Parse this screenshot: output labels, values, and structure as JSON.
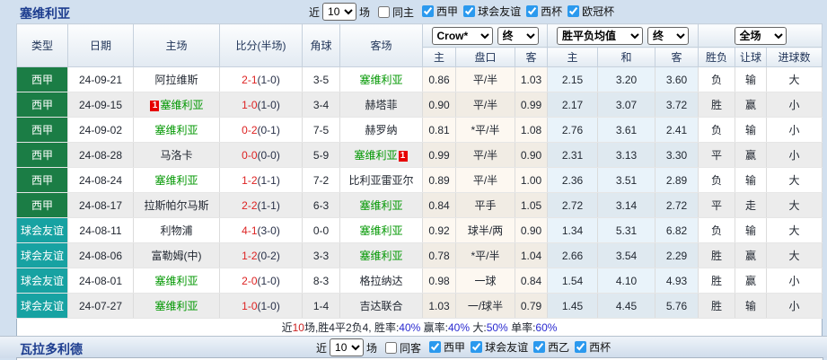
{
  "colors": {
    "liga_green": "#1b7d45",
    "friendly_teal": "#17a2a2",
    "win_red": "#cc2222",
    "lose_green": "#009700",
    "draw_blue": "#2a2ad0",
    "badge_red": "#e60000",
    "title_navy": "#1d3d8f"
  },
  "sevilla": {
    "title": "塞维利亚",
    "recent_label": "近",
    "recent_count": "10",
    "matches_label": "场",
    "same_label": "同主",
    "filters": [
      {
        "label": "西甲",
        "checked": true
      },
      {
        "label": "球会友谊",
        "checked": true
      },
      {
        "label": "西杯",
        "checked": true
      },
      {
        "label": "欧冠杯",
        "checked": true
      }
    ]
  },
  "table": {
    "columns": [
      "类型",
      "日期",
      "主场",
      "比分(半场)",
      "角球",
      "客场"
    ],
    "selects": {
      "odds_company": "Crow*",
      "odds_time1": "终",
      "avg_label": "胜平负均值",
      "odds_time2": "终",
      "scope": "全场"
    },
    "sub_columns": [
      "主",
      "盘口",
      "客",
      "主",
      "和",
      "客",
      "胜负",
      "让球",
      "进球数"
    ],
    "rows": [
      {
        "league": "西甲",
        "lt": "liga",
        "date": "24-09-21",
        "home": {
          "name": "阿拉维斯",
          "sev": false
        },
        "score": {
          "ft": "2-1",
          "ht": "(1-0)"
        },
        "corners": "3-5",
        "away": {
          "name": "塞维利亚",
          "sev": true
        },
        "crow": [
          "0.86",
          "平/半",
          "1.03"
        ],
        "avg": [
          "2.15",
          "3.20",
          "3.60"
        ],
        "res": [
          {
            "t": "负",
            "c": "green"
          },
          {
            "t": "输",
            "c": "green"
          },
          {
            "t": "大",
            "c": "red"
          }
        ]
      },
      {
        "league": "西甲",
        "lt": "liga",
        "date": "24-09-15",
        "home": {
          "name": "塞维利亚",
          "sev": true,
          "badge": "1",
          "badge_pos": "before"
        },
        "score": {
          "ft": "1-0",
          "ht": "(1-0)"
        },
        "corners": "3-4",
        "away": {
          "name": "赫塔菲",
          "sev": false
        },
        "crow": [
          "0.90",
          "平/半",
          "0.99"
        ],
        "avg": [
          "2.17",
          "3.07",
          "3.72"
        ],
        "res": [
          {
            "t": "胜",
            "c": "red"
          },
          {
            "t": "赢",
            "c": "red"
          },
          {
            "t": "小",
            "c": "green"
          }
        ]
      },
      {
        "league": "西甲",
        "lt": "liga",
        "date": "24-09-02",
        "home": {
          "name": "塞维利亚",
          "sev": true
        },
        "score": {
          "ft": "0-2",
          "ht": "(0-1)"
        },
        "corners": "7-5",
        "away": {
          "name": "赫罗纳",
          "sev": false
        },
        "crow": [
          "0.81",
          "*平/半",
          "1.08"
        ],
        "avg": [
          "2.76",
          "3.61",
          "2.41"
        ],
        "res": [
          {
            "t": "负",
            "c": "green"
          },
          {
            "t": "输",
            "c": "green"
          },
          {
            "t": "小",
            "c": "green"
          }
        ]
      },
      {
        "league": "西甲",
        "lt": "liga",
        "date": "24-08-28",
        "home": {
          "name": "马洛卡",
          "sev": false
        },
        "score": {
          "ft": "0-0",
          "ht": "(0-0)"
        },
        "corners": "5-9",
        "away": {
          "name": "塞维利亚",
          "sev": true,
          "badge": "1",
          "badge_pos": "after"
        },
        "crow": [
          "0.99",
          "平/半",
          "0.90"
        ],
        "avg": [
          "2.31",
          "3.13",
          "3.30"
        ],
        "res": [
          {
            "t": "平",
            "c": "blue"
          },
          {
            "t": "赢",
            "c": "red"
          },
          {
            "t": "小",
            "c": "green"
          }
        ]
      },
      {
        "league": "西甲",
        "lt": "liga",
        "date": "24-08-24",
        "home": {
          "name": "塞维利亚",
          "sev": true
        },
        "score": {
          "ft": "1-2",
          "ht": "(1-1)"
        },
        "corners": "7-2",
        "away": {
          "name": "比利亚雷亚尔",
          "sev": false
        },
        "crow": [
          "0.89",
          "平/半",
          "1.00"
        ],
        "avg": [
          "2.36",
          "3.51",
          "2.89"
        ],
        "res": [
          {
            "t": "负",
            "c": "green"
          },
          {
            "t": "输",
            "c": "green"
          },
          {
            "t": "大",
            "c": "red"
          }
        ]
      },
      {
        "league": "西甲",
        "lt": "liga",
        "date": "24-08-17",
        "home": {
          "name": "拉斯帕尔马斯",
          "sev": false
        },
        "score": {
          "ft": "2-2",
          "ht": "(1-1)"
        },
        "corners": "6-3",
        "away": {
          "name": "塞维利亚",
          "sev": true
        },
        "crow": [
          "0.84",
          "平手",
          "1.05"
        ],
        "avg": [
          "2.72",
          "3.14",
          "2.72"
        ],
        "res": [
          {
            "t": "平",
            "c": "blue"
          },
          {
            "t": "走",
            "c": "blue"
          },
          {
            "t": "大",
            "c": "red"
          }
        ]
      },
      {
        "league": "球会友谊",
        "lt": "fri",
        "date": "24-08-11",
        "home": {
          "name": "利物浦",
          "sev": false
        },
        "score": {
          "ft": "4-1",
          "ht": "(3-0)"
        },
        "corners": "0-0",
        "away": {
          "name": "塞维利亚",
          "sev": true
        },
        "crow": [
          "0.92",
          "球半/两",
          "0.90"
        ],
        "avg": [
          "1.34",
          "5.31",
          "6.82"
        ],
        "res": [
          {
            "t": "负",
            "c": "green"
          },
          {
            "t": "输",
            "c": "green"
          },
          {
            "t": "大",
            "c": "red"
          }
        ]
      },
      {
        "league": "球会友谊",
        "lt": "fri",
        "date": "24-08-06",
        "home": {
          "name": "富勒姆(中)",
          "sev": false
        },
        "score": {
          "ft": "1-2",
          "ht": "(0-2)"
        },
        "corners": "3-3",
        "away": {
          "name": "塞维利亚",
          "sev": true
        },
        "crow": [
          "0.78",
          "*平/半",
          "1.04"
        ],
        "avg": [
          "2.66",
          "3.54",
          "2.29"
        ],
        "res": [
          {
            "t": "胜",
            "c": "red"
          },
          {
            "t": "赢",
            "c": "red"
          },
          {
            "t": "大",
            "c": "red"
          }
        ]
      },
      {
        "league": "球会友谊",
        "lt": "fri",
        "date": "24-08-01",
        "home": {
          "name": "塞维利亚",
          "sev": true
        },
        "score": {
          "ft": "2-0",
          "ht": "(1-0)"
        },
        "corners": "8-3",
        "away": {
          "name": "格拉纳达",
          "sev": false
        },
        "crow": [
          "0.98",
          "一球",
          "0.84"
        ],
        "avg": [
          "1.54",
          "4.10",
          "4.93"
        ],
        "res": [
          {
            "t": "胜",
            "c": "red"
          },
          {
            "t": "赢",
            "c": "red"
          },
          {
            "t": "小",
            "c": "green"
          }
        ]
      },
      {
        "league": "球会友谊",
        "lt": "fri",
        "date": "24-07-27",
        "home": {
          "name": "塞维利亚",
          "sev": true
        },
        "score": {
          "ft": "1-0",
          "ht": "(1-0)"
        },
        "corners": "1-4",
        "away": {
          "name": "吉达联合",
          "sev": false
        },
        "crow": [
          "1.03",
          "一/球半",
          "0.79"
        ],
        "avg": [
          "1.45",
          "4.45",
          "5.76"
        ],
        "res": [
          {
            "t": "胜",
            "c": "red"
          },
          {
            "t": "输",
            "c": "green"
          },
          {
            "t": "小",
            "c": "green"
          }
        ]
      }
    ],
    "summary_segments": [
      {
        "text": "近",
        "color": "dark"
      },
      {
        "text": "10",
        "color": "red"
      },
      {
        "text": "场,胜4平2负4, 胜率:",
        "color": "dark"
      },
      {
        "text": "40%",
        "color": "blue"
      },
      {
        "text": " 赢率:",
        "color": "dark"
      },
      {
        "text": "40%",
        "color": "blue"
      },
      {
        "text": " 大:",
        "color": "dark"
      },
      {
        "text": "50%",
        "color": "blue"
      },
      {
        "text": " 单率:",
        "color": "dark"
      },
      {
        "text": "60%",
        "color": "blue"
      }
    ]
  },
  "valladolid": {
    "title": "瓦拉多利德",
    "recent_label": "近",
    "recent_count": "10",
    "matches_label": "场",
    "same_label": "同客",
    "filters": [
      {
        "label": "西甲",
        "checked": true
      },
      {
        "label": "球会友谊",
        "checked": true
      },
      {
        "label": "西乙",
        "checked": true
      },
      {
        "label": "西杯",
        "checked": true
      }
    ]
  }
}
